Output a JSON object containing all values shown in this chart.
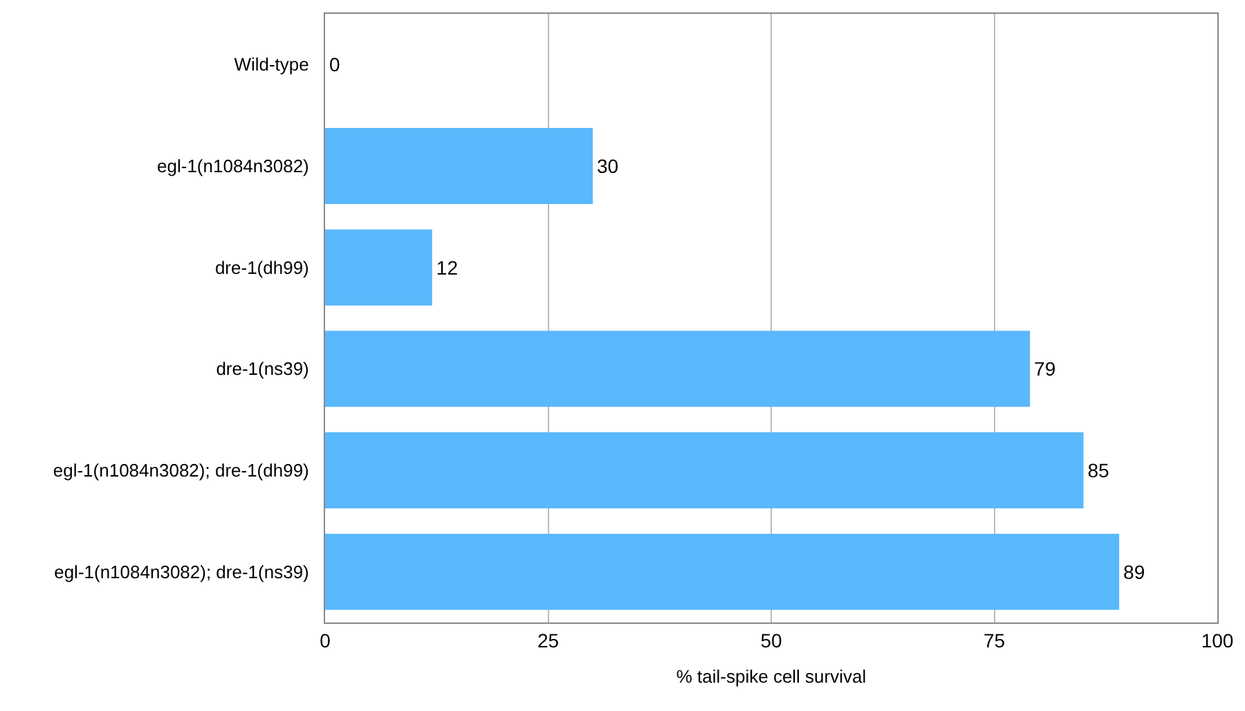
{
  "chart_data": {
    "type": "bar",
    "orientation": "horizontal",
    "categories": [
      "Wild-type",
      "egl-1(n1084n3082)",
      "dre-1(dh99)",
      "dre-1(ns39)",
      "egl-1(n1084n3082); dre-1(dh99)",
      "egl-1(n1084n3082); dre-1(ns39)"
    ],
    "values": [
      0,
      30,
      12,
      79,
      85,
      89
    ],
    "color": "#5ab8fc",
    "xlim": [
      0,
      100
    ],
    "xticks": [
      0,
      25,
      50,
      75,
      100
    ],
    "grid": "x",
    "data_labels": true,
    "xlabel": "% tail-spike cell survival"
  }
}
